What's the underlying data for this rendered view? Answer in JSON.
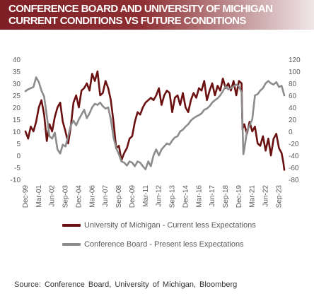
{
  "header": {
    "title": "CONFERENCE BOARD AND UNIVERSITY OF MICHIGAN\nCURRENT CONDITIONS VS FUTURE CONDITIONS"
  },
  "source": "Source:  Conference  Board, University of Michigan,  Bloomberg",
  "colors": {
    "um": "#6b1010",
    "cb": "#8c8c8c",
    "header": "#7d1f24"
  },
  "chart_data": {
    "type": "line",
    "title": "CONFERENCE BOARD AND UNIVERSITY OF MICHIGAN CURRENT CONDITIONS VS FUTURE CONDITIONS",
    "legend_position": "bottom",
    "grid": false,
    "x_range": [
      "1999-12",
      "2024-03"
    ],
    "x_ticks": [
      "Dec-99",
      "Mar-01",
      "Jun-02",
      "Sep-03",
      "Dec-04",
      "Mar-06",
      "Jun-07",
      "Sep-08",
      "Dec-09",
      "Mar-11",
      "Jun-12",
      "Sep-13",
      "Dec-14",
      "Mar-16",
      "Jun-17",
      "Sep-18",
      "Dec-19",
      "Mar-21",
      "Jun-22",
      "Sep-23"
    ],
    "left_axis": {
      "min": -10,
      "max": 40,
      "ticks": [
        "-10",
        "-5",
        "0",
        "5",
        "10",
        "15",
        "20",
        "25",
        "30",
        "35",
        "40"
      ]
    },
    "right_axis": {
      "min": -80,
      "max": 120,
      "ticks": [
        "-80",
        "-60",
        "-40",
        "-20",
        "0",
        "20",
        "40",
        "60",
        "80",
        "100",
        "120"
      ]
    },
    "series": [
      {
        "name": "University of Michigan - Current less Expectations",
        "axis": "left",
        "color": "#6b1010",
        "points": [
          [
            "1999-12",
            10
          ],
          [
            "2000-03",
            7
          ],
          [
            "2000-06",
            12
          ],
          [
            "2000-09",
            10
          ],
          [
            "2000-12",
            14
          ],
          [
            "2001-03",
            20
          ],
          [
            "2001-06",
            23
          ],
          [
            "2001-09",
            17
          ],
          [
            "2001-12",
            6
          ],
          [
            "2002-03",
            13
          ],
          [
            "2002-06",
            10
          ],
          [
            "2002-09",
            16
          ],
          [
            "2002-12",
            20
          ],
          [
            "2003-03",
            22
          ],
          [
            "2003-06",
            14
          ],
          [
            "2003-09",
            10
          ],
          [
            "2003-12",
            5
          ],
          [
            "2004-03",
            12
          ],
          [
            "2004-06",
            22
          ],
          [
            "2004-09",
            25
          ],
          [
            "2004-12",
            20
          ],
          [
            "2005-03",
            27
          ],
          [
            "2005-06",
            28
          ],
          [
            "2005-09",
            30
          ],
          [
            "2005-12",
            27
          ],
          [
            "2006-03",
            34
          ],
          [
            "2006-06",
            31
          ],
          [
            "2006-09",
            35
          ],
          [
            "2006-12",
            25
          ],
          [
            "2007-03",
            26
          ],
          [
            "2007-06",
            31
          ],
          [
            "2007-09",
            28
          ],
          [
            "2007-12",
            23
          ],
          [
            "2008-03",
            14
          ],
          [
            "2008-06",
            3
          ],
          [
            "2008-09",
            4
          ],
          [
            "2008-12",
            -2
          ],
          [
            "2009-03",
            1
          ],
          [
            "2009-06",
            3
          ],
          [
            "2009-09",
            7
          ],
          [
            "2009-12",
            8
          ],
          [
            "2010-03",
            14
          ],
          [
            "2010-06",
            18
          ],
          [
            "2010-09",
            17
          ],
          [
            "2010-12",
            20
          ],
          [
            "2011-03",
            22
          ],
          [
            "2011-06",
            23
          ],
          [
            "2011-09",
            24
          ],
          [
            "2011-12",
            23
          ],
          [
            "2012-03",
            25
          ],
          [
            "2012-06",
            28
          ],
          [
            "2012-09",
            21
          ],
          [
            "2012-12",
            25
          ],
          [
            "2013-03",
            27
          ],
          [
            "2013-06",
            26
          ],
          [
            "2013-09",
            18
          ],
          [
            "2013-12",
            24
          ],
          [
            "2014-03",
            25
          ],
          [
            "2014-06",
            21
          ],
          [
            "2014-09",
            26
          ],
          [
            "2014-12",
            20
          ],
          [
            "2015-03",
            18
          ],
          [
            "2015-06",
            23
          ],
          [
            "2015-09",
            26
          ],
          [
            "2015-12",
            24
          ],
          [
            "2016-03",
            28
          ],
          [
            "2016-06",
            27
          ],
          [
            "2016-09",
            31
          ],
          [
            "2016-12",
            23
          ],
          [
            "2017-03",
            27
          ],
          [
            "2017-06",
            30
          ],
          [
            "2017-09",
            25
          ],
          [
            "2017-12",
            29
          ],
          [
            "2018-03",
            27
          ],
          [
            "2018-06",
            32
          ],
          [
            "2018-09",
            28
          ],
          [
            "2018-12",
            30
          ],
          [
            "2019-03",
            27
          ],
          [
            "2019-06",
            31
          ],
          [
            "2019-09",
            25
          ],
          [
            "2019-12",
            31
          ],
          [
            "2020-03",
            30
          ],
          [
            "2020-04",
            11
          ],
          [
            "2020-06",
            13
          ],
          [
            "2020-09",
            9
          ],
          [
            "2020-12",
            14
          ],
          [
            "2021-03",
            10
          ],
          [
            "2021-06",
            12
          ],
          [
            "2021-09",
            5
          ],
          [
            "2021-12",
            4
          ],
          [
            "2022-03",
            8
          ],
          [
            "2022-06",
            2
          ],
          [
            "2022-09",
            7
          ],
          [
            "2022-12",
            0
          ],
          [
            "2023-03",
            7
          ],
          [
            "2023-06",
            9
          ],
          [
            "2023-09",
            3
          ],
          [
            "2023-12",
            1
          ],
          [
            "2024-02",
            -3
          ],
          [
            "2024-03",
            -6
          ]
        ]
      },
      {
        "name": "Conference Board - Present less Expectations",
        "axis": "right",
        "color": "#8c8c8c",
        "points": [
          [
            "1999-12",
            67
          ],
          [
            "2000-03",
            70
          ],
          [
            "2000-06",
            72
          ],
          [
            "2000-09",
            74
          ],
          [
            "2000-12",
            90
          ],
          [
            "2001-03",
            82
          ],
          [
            "2001-06",
            68
          ],
          [
            "2001-09",
            58
          ],
          [
            "2001-12",
            26
          ],
          [
            "2002-03",
            -8
          ],
          [
            "2002-06",
            -12
          ],
          [
            "2002-09",
            -2
          ],
          [
            "2002-12",
            -30
          ],
          [
            "2003-03",
            -37
          ],
          [
            "2003-06",
            -22
          ],
          [
            "2003-09",
            -25
          ],
          [
            "2003-12",
            -8
          ],
          [
            "2004-03",
            10
          ],
          [
            "2004-06",
            18
          ],
          [
            "2004-09",
            10
          ],
          [
            "2004-12",
            20
          ],
          [
            "2005-03",
            28
          ],
          [
            "2005-06",
            36
          ],
          [
            "2005-09",
            22
          ],
          [
            "2005-12",
            30
          ],
          [
            "2006-03",
            40
          ],
          [
            "2006-06",
            46
          ],
          [
            "2006-09",
            44
          ],
          [
            "2006-12",
            48
          ],
          [
            "2007-03",
            42
          ],
          [
            "2007-06",
            38
          ],
          [
            "2007-09",
            40
          ],
          [
            "2007-12",
            20
          ],
          [
            "2008-03",
            -10
          ],
          [
            "2008-06",
            -28
          ],
          [
            "2008-09",
            -38
          ],
          [
            "2008-12",
            -50
          ],
          [
            "2009-03",
            -52
          ],
          [
            "2009-06",
            -57
          ],
          [
            "2009-09",
            -50
          ],
          [
            "2009-12",
            -52
          ],
          [
            "2010-03",
            -58
          ],
          [
            "2010-06",
            -50
          ],
          [
            "2010-09",
            -52
          ],
          [
            "2010-12",
            -58
          ],
          [
            "2011-03",
            -63
          ],
          [
            "2011-06",
            -50
          ],
          [
            "2011-09",
            -58
          ],
          [
            "2011-12",
            -40
          ],
          [
            "2012-03",
            -30
          ],
          [
            "2012-06",
            -40
          ],
          [
            "2012-09",
            -30
          ],
          [
            "2012-12",
            -25
          ],
          [
            "2013-03",
            -20
          ],
          [
            "2013-06",
            -22
          ],
          [
            "2013-09",
            -15
          ],
          [
            "2013-12",
            -10
          ],
          [
            "2014-03",
            -8
          ],
          [
            "2014-06",
            0
          ],
          [
            "2014-09",
            3
          ],
          [
            "2014-12",
            8
          ],
          [
            "2015-03",
            12
          ],
          [
            "2015-06",
            18
          ],
          [
            "2015-09",
            22
          ],
          [
            "2015-12",
            25
          ],
          [
            "2016-03",
            27
          ],
          [
            "2016-06",
            30
          ],
          [
            "2016-09",
            36
          ],
          [
            "2016-12",
            38
          ],
          [
            "2017-03",
            42
          ],
          [
            "2017-06",
            48
          ],
          [
            "2017-09",
            52
          ],
          [
            "2017-12",
            55
          ],
          [
            "2018-03",
            60
          ],
          [
            "2018-06",
            67
          ],
          [
            "2018-09",
            75
          ],
          [
            "2018-12",
            70
          ],
          [
            "2019-03",
            72
          ],
          [
            "2019-06",
            75
          ],
          [
            "2019-09",
            78
          ],
          [
            "2019-12",
            75
          ],
          [
            "2020-03",
            65
          ],
          [
            "2020-05",
            -38
          ],
          [
            "2020-06",
            -30
          ],
          [
            "2020-09",
            0
          ],
          [
            "2020-12",
            10
          ],
          [
            "2021-03",
            20
          ],
          [
            "2021-06",
            60
          ],
          [
            "2021-09",
            62
          ],
          [
            "2021-12",
            68
          ],
          [
            "2022-03",
            72
          ],
          [
            "2022-06",
            80
          ],
          [
            "2022-09",
            84
          ],
          [
            "2022-12",
            80
          ],
          [
            "2023-03",
            78
          ],
          [
            "2023-06",
            82
          ],
          [
            "2023-09",
            74
          ],
          [
            "2023-12",
            76
          ],
          [
            "2024-03",
            60
          ]
        ]
      }
    ]
  }
}
